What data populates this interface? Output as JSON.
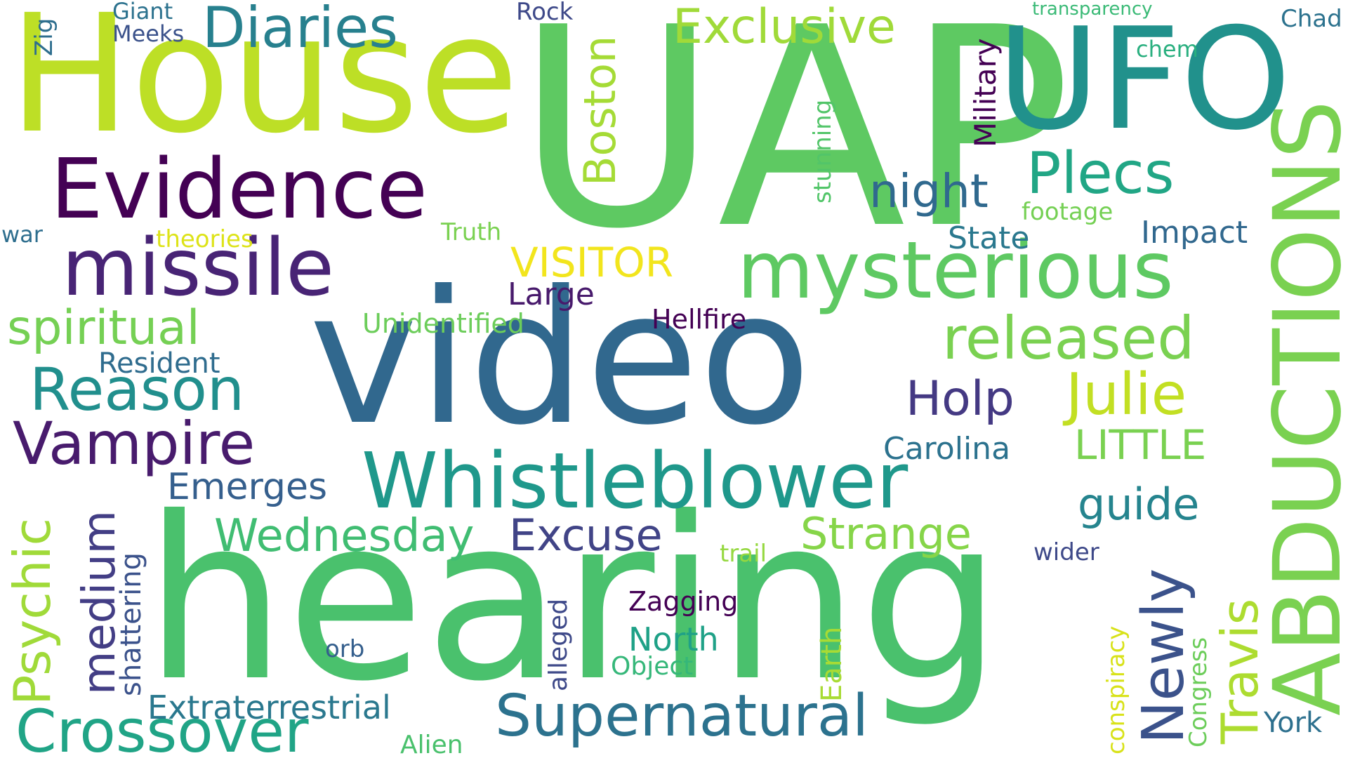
{
  "words": [
    {
      "text": "UAP",
      "color": "#5ec962"
    },
    {
      "text": "hearing",
      "color": "#4ac16d"
    },
    {
      "text": "video",
      "color": "#31688e"
    },
    {
      "text": "House",
      "color": "#bddf26"
    },
    {
      "text": "UFO",
      "color": "#21918c"
    },
    {
      "text": "ABDUCTIONS",
      "color": "#7ad151"
    },
    {
      "text": "Evidence",
      "color": "#440154"
    },
    {
      "text": "missile",
      "color": "#482475"
    },
    {
      "text": "mysterious",
      "color": "#5ec962"
    },
    {
      "text": "Whistleblower",
      "color": "#1f988b"
    },
    {
      "text": "Diaries",
      "color": "#27808e"
    },
    {
      "text": "Exclusive",
      "color": "#a0da39"
    },
    {
      "text": "Crossover",
      "color": "#20a486"
    },
    {
      "text": "Supernatural",
      "color": "#2c728e"
    },
    {
      "text": "released",
      "color": "#7ad151"
    },
    {
      "text": "Reason",
      "color": "#218f8d"
    },
    {
      "text": "Vampire",
      "color": "#481b6d"
    },
    {
      "text": "Julie",
      "color": "#c2df23"
    },
    {
      "text": "Plecs",
      "color": "#21a685"
    },
    {
      "text": "Boston",
      "color": "#a5db36"
    },
    {
      "text": "Psychic",
      "color": "#a0da39"
    },
    {
      "text": "spiritual",
      "color": "#75d054"
    },
    {
      "text": "Newly",
      "color": "#3b528b"
    },
    {
      "text": "Travis",
      "color": "#addc30"
    },
    {
      "text": "medium",
      "color": "#433e85"
    },
    {
      "text": "night",
      "color": "#30698e"
    },
    {
      "text": "Holp",
      "color": "#443983"
    },
    {
      "text": "Strange",
      "color": "#86d549"
    },
    {
      "text": "Wednesday",
      "color": "#40bd72"
    },
    {
      "text": "Excuse",
      "color": "#414487"
    },
    {
      "text": "guide",
      "color": "#25848e"
    },
    {
      "text": "VISITOR",
      "color": "#f2e51d"
    },
    {
      "text": "LITTLE",
      "color": "#7ad151"
    },
    {
      "text": "Extraterrestrial",
      "color": "#2a788e"
    },
    {
      "text": "Military",
      "color": "#440154"
    },
    {
      "text": "Emerges",
      "color": "#355f8d"
    },
    {
      "text": "Carolina",
      "color": "#2c728e"
    },
    {
      "text": "Impact",
      "color": "#31688e"
    },
    {
      "text": "State",
      "color": "#2a788e"
    },
    {
      "text": "Large",
      "color": "#481a6c"
    },
    {
      "text": "Hellfire",
      "color": "#440154"
    },
    {
      "text": "Resident",
      "color": "#2f6c8e"
    },
    {
      "text": "Unidentified",
      "color": "#6ccd5a"
    },
    {
      "text": "North",
      "color": "#1fa187"
    },
    {
      "text": "Zagging",
      "color": "#440154"
    },
    {
      "text": "shattering",
      "color": "#3b528b"
    },
    {
      "text": "stunning",
      "color": "#52c569"
    },
    {
      "text": "conspiracy",
      "color": "#d8e219"
    },
    {
      "text": "Congress",
      "color": "#6ccd5a"
    },
    {
      "text": "Earth",
      "color": "#a8db34"
    },
    {
      "text": "alleged",
      "color": "#3e4989"
    },
    {
      "text": "Object",
      "color": "#35b779"
    },
    {
      "text": "Alien",
      "color": "#4ac16d"
    },
    {
      "text": "York",
      "color": "#2d708e"
    },
    {
      "text": "footage",
      "color": "#75d054"
    },
    {
      "text": "theories",
      "color": "#dde318"
    },
    {
      "text": "Truth",
      "color": "#7ad151"
    },
    {
      "text": "trail",
      "color": "#95d840"
    },
    {
      "text": "wider",
      "color": "#3e4989"
    },
    {
      "text": "orb",
      "color": "#355f8d"
    },
    {
      "text": "chem",
      "color": "#29af7f"
    },
    {
      "text": "transparency",
      "color": "#3aba76"
    },
    {
      "text": "Chad",
      "color": "#2c728e"
    },
    {
      "text": "Rock",
      "color": "#3e4989"
    },
    {
      "text": "Giant",
      "color": "#2c728e"
    },
    {
      "text": "Meeks",
      "color": "#3b528b"
    },
    {
      "text": "Zig",
      "color": "#2e6e8e"
    },
    {
      "text": "war",
      "color": "#2e6e8e"
    }
  ]
}
